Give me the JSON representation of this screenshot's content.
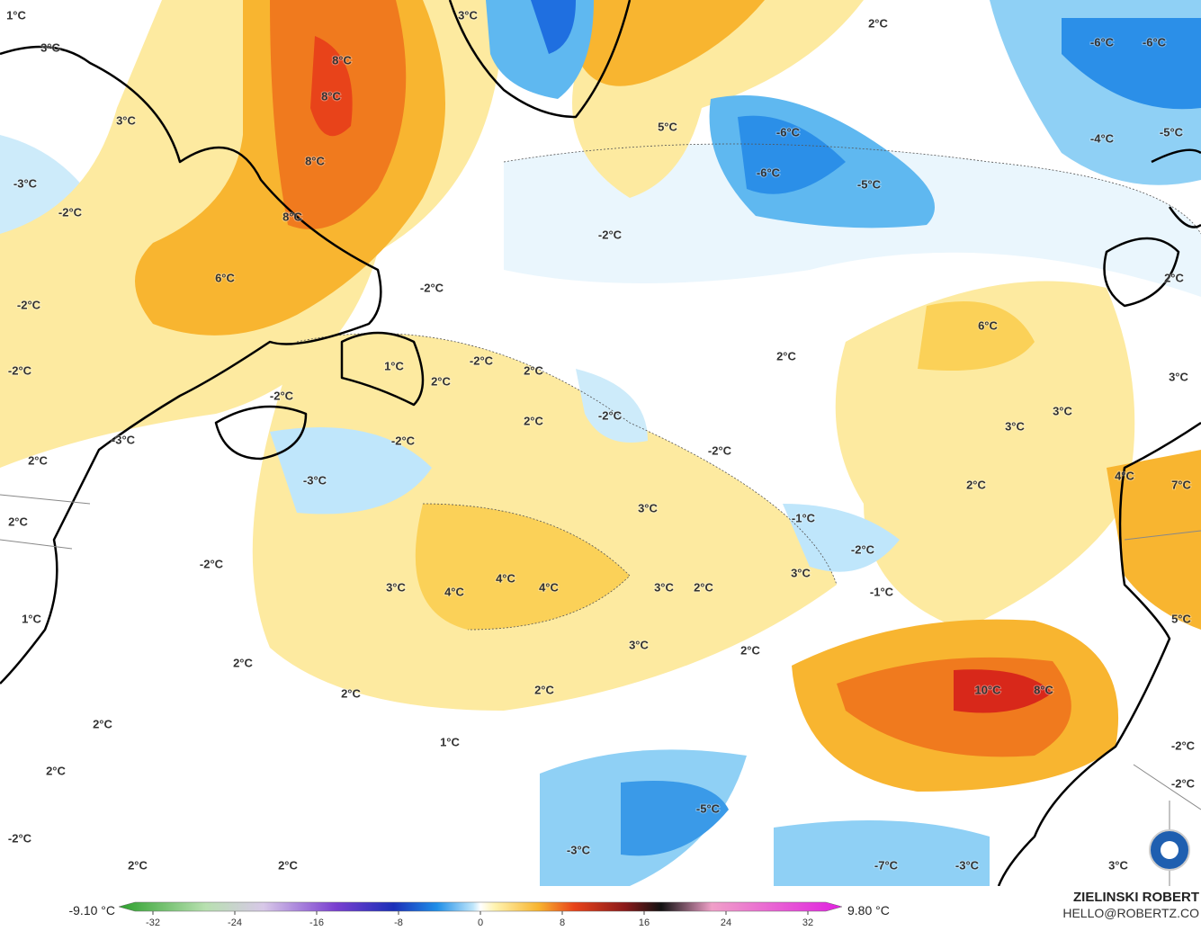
{
  "map": {
    "labels": [
      "1°C",
      "3°C",
      "8°C",
      "8°C",
      "3°C",
      "8°C",
      "-3°C",
      "-2°C",
      "8°C",
      "6°C",
      "-2°C",
      "-2°C",
      "1°C",
      "-2°C",
      "-2°C",
      "2°C",
      "2°C",
      "-2°C",
      "2°C",
      "-2°C",
      "-2°C",
      "-3°C",
      "2°C",
      "-2°C",
      "-3°C",
      "2°C",
      "-2°C",
      "3°C",
      "-1°C",
      "-2°C",
      "3°C",
      "-1°C",
      "3°C",
      "4°C",
      "4°C",
      "4°C",
      "3°C",
      "2°C",
      "1°C",
      "3°C",
      "2°C",
      "2°C",
      "2°C",
      "2°C",
      "2°C",
      "1°C",
      "2°C",
      "-2°C",
      "2°C",
      "2°C",
      "-3°C",
      "-5°C",
      "-7°C",
      "-3°C",
      "3°C",
      "10°C",
      "8°C",
      "2°C",
      "-6°C",
      "-6°C",
      "5°C",
      "-6°C",
      "-6°C",
      "-5°C",
      "-4°C",
      "-5°C",
      "-2°C",
      "6°C",
      "2°C",
      "2°C",
      "3°C",
      "3°C",
      "3°C",
      "2°C",
      "4°C",
      "7°C",
      "5°C",
      "-2°C",
      "-2°C",
      "3°C"
    ]
  },
  "colorbar": {
    "min_label": "-9.10 °C",
    "max_label": "9.80 °C",
    "ticks": [
      -32,
      -24,
      -16,
      -8,
      0,
      8,
      16,
      24,
      32
    ]
  },
  "credit": {
    "name": "ZIELINSKI ROBERT",
    "contact": "HELLO@ROBERTZ.CO"
  }
}
